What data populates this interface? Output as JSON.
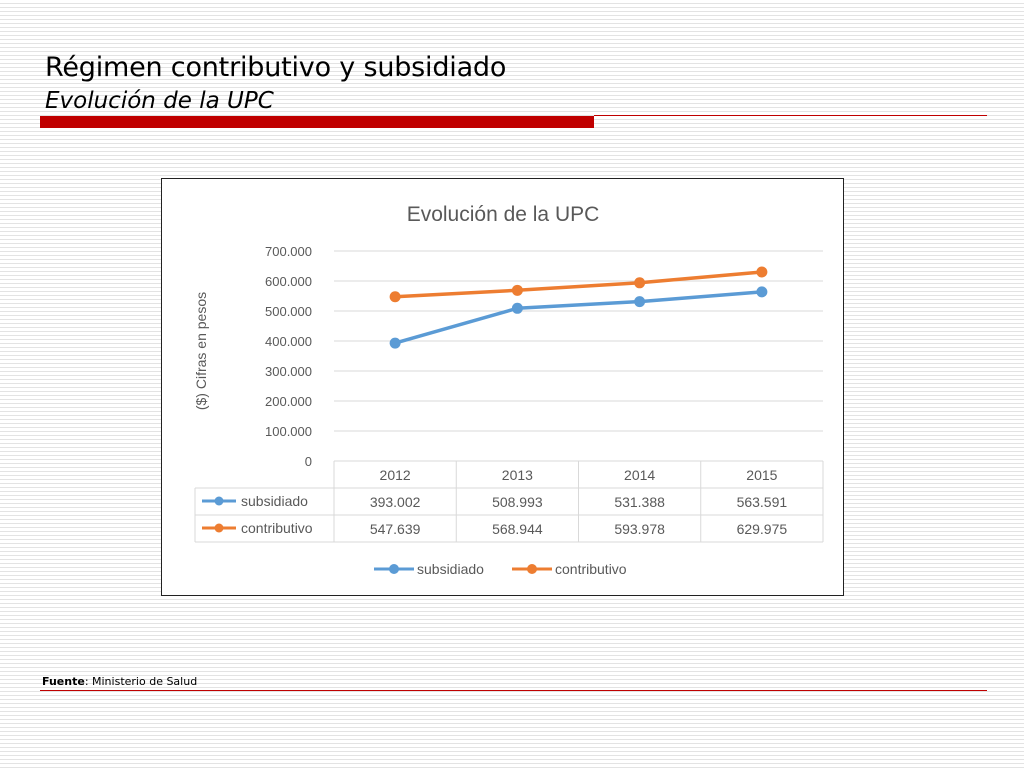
{
  "slide": {
    "title": "Régimen contributivo y subsidiado",
    "subtitle": "Evolución de la UPC",
    "source_label": "Fuente",
    "source_text": ": Ministerio de Salud",
    "accent_color": "#c00000"
  },
  "chart_data": {
    "type": "line",
    "title": "Evolución de la UPC",
    "xlabel": "",
    "ylabel": "($) Cifras en pesos",
    "categories": [
      "2012",
      "2013",
      "2014",
      "2015"
    ],
    "ylim": [
      0,
      700000
    ],
    "yticks": [
      0,
      100000,
      200000,
      300000,
      400000,
      500000,
      600000,
      700000
    ],
    "ytick_labels": [
      "0",
      "100.000",
      "200.000",
      "300.000",
      "400.000",
      "500.000",
      "600.000",
      "700.000"
    ],
    "grid": true,
    "legend_position": "bottom",
    "data_table": true,
    "series": [
      {
        "name": "subsidiado",
        "color": "#5b9bd5",
        "values": [
          393002,
          508993,
          531388,
          563591
        ],
        "labels": [
          "393.002",
          "508.993",
          "531.388",
          "563.591"
        ]
      },
      {
        "name": "contributivo",
        "color": "#ed7d31",
        "values": [
          547639,
          568944,
          593978,
          629975
        ],
        "labels": [
          "547.639",
          "568.944",
          "593.978",
          "629.975"
        ]
      }
    ]
  }
}
